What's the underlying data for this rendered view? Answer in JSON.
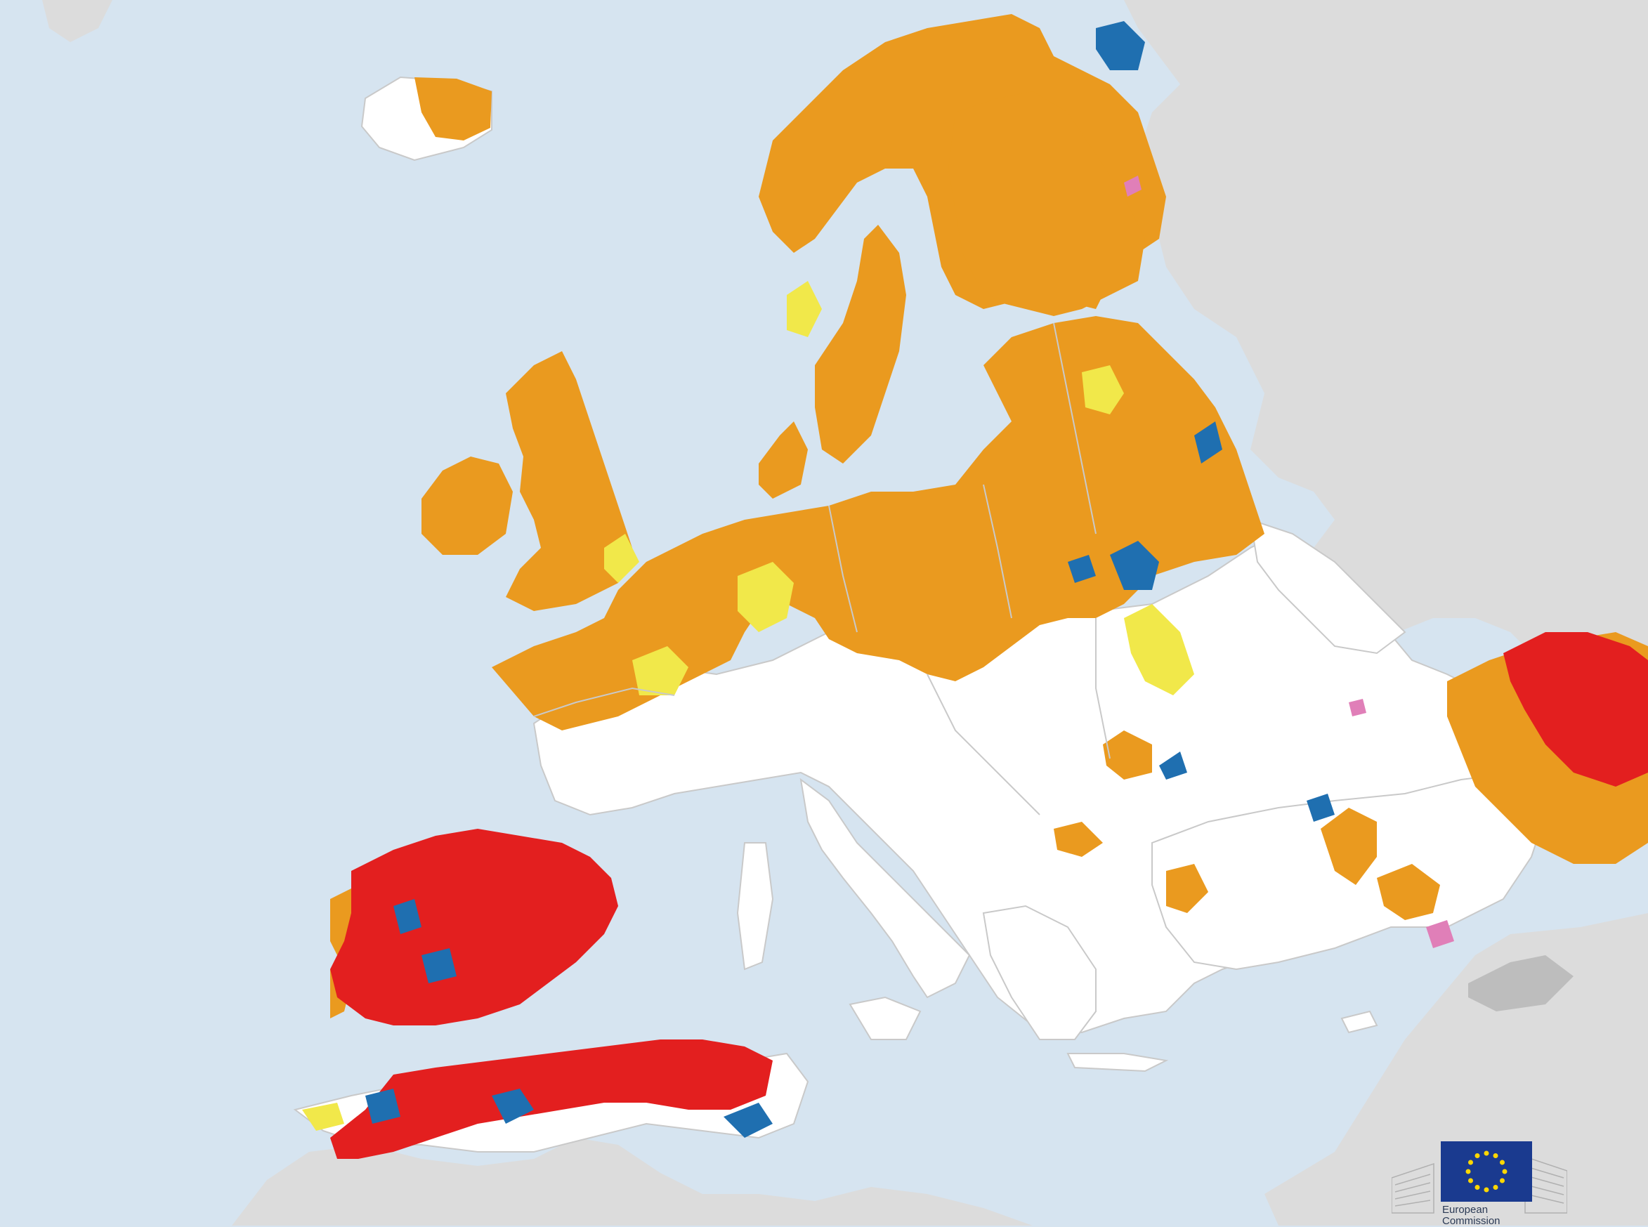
{
  "map": {
    "colors": {
      "sea": "#d6e4f0",
      "non_eu_land": "#dcdcdc",
      "no_data_land": "#ffffff",
      "border": "#c9c9c9",
      "watch": "#f1e84a",
      "warning": "#ea9a1f",
      "alert": "#e31f1f",
      "recovery": "#1f6fb0",
      "temporary_recovery": "#e07fb8"
    },
    "icons": [
      "eu-flag-icon",
      "berlaymont-building-icon"
    ]
  },
  "logo": {
    "line1": "European",
    "line2": "Commission"
  }
}
